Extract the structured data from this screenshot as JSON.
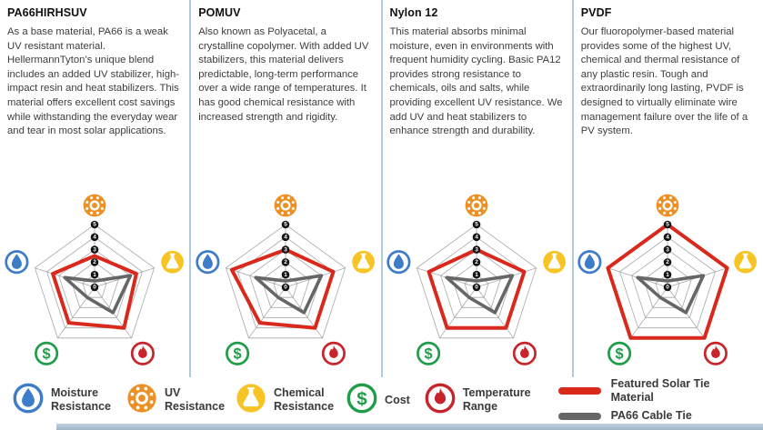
{
  "columns": [
    {
      "title": "PA66HIRHSUV",
      "description": "As a base material, PA66 is a weak UV resistant material. HellermannTyton’s unique blend includes an added UV stabilizer, high-impact resin and heat stabilizers. This material offers excellent cost savings while withstanding the everyday wear and tear in most solar applications."
    },
    {
      "title": "POMUV",
      "description": "Also known as Polyacetal, a crystalline copolymer. With added UV stabilizers, this material delivers predictable, long-term performance over a wide range of temperatures. It has good chemical resistance with increased strength and rigidity."
    },
    {
      "title": "Nylon 12",
      "description": "This material absorbs minimal moisture, even in environments with frequent humidity cycling. Basic PA12 provides strong resistance to chemicals, oils and salts, while providing excellent UV resistance. We add UV and heat stabilizers to enhance strength and durability."
    },
    {
      "title": "PVDF",
      "description": "Our fluoropolymer-based material provides some of the highest UV, chemical and thermal resistance of any plastic resin. Tough and extraordinarily long lasting, PVDF is designed to virtually eliminate wire management failure over the life of a PV system."
    }
  ],
  "chart_data": {
    "type": "radar",
    "axes": [
      "UV Resistance",
      "Chemical Resistance",
      "Temperature Range",
      "Cost",
      "Moisture Resistance"
    ],
    "axis_icons": [
      "sun",
      "flask",
      "flame",
      "dollar",
      "droplet"
    ],
    "scale": {
      "min": 0,
      "max": 5,
      "ticks": [
        5,
        4,
        3,
        2,
        1,
        0
      ]
    },
    "grid": "pentagon rings at 1,2,3,4,5 with radial spokes; tick labels on vertical axis only",
    "legend_position": "bottom",
    "charts": [
      {
        "material": "PA66HIRHSUV",
        "series": [
          {
            "name": "Featured Solar Tie Material",
            "values": [
              2.5,
              3.5,
              4,
              3.5,
              3.5
            ]
          },
          {
            "name": "PA66 Cable Tie",
            "values": [
              0.5,
              3,
              2.5,
              1,
              2.5
            ]
          }
        ]
      },
      {
        "material": "POMUV",
        "series": [
          {
            "name": "Featured Solar Tie Material",
            "values": [
              3,
              4,
              4,
              3.5,
              4.5
            ]
          },
          {
            "name": "PA66 Cable Tie",
            "values": [
              0.5,
              3,
              2.5,
              1,
              2.5
            ]
          }
        ]
      },
      {
        "material": "Nylon 12",
        "series": [
          {
            "name": "Featured Solar Tie Material",
            "values": [
              3,
              4,
              4,
              4,
              4
            ]
          },
          {
            "name": "PA66 Cable Tie",
            "values": [
              0.5,
              3,
              2.5,
              1,
              2.5
            ]
          }
        ]
      },
      {
        "material": "PVDF",
        "series": [
          {
            "name": "Featured Solar Tie Material",
            "values": [
              5,
              5,
              5,
              5,
              5
            ]
          },
          {
            "name": "PA66 Cable Tie",
            "values": [
              0.5,
              3,
              2.5,
              1,
              2.5
            ]
          }
        ]
      }
    ]
  },
  "legend": {
    "attributes": [
      {
        "icon": "droplet",
        "style": "outline",
        "color": "#3d7cc9",
        "line1": "Moisture",
        "line2": "Resistance"
      },
      {
        "icon": "sun",
        "style": "solid",
        "color": "#ec9023",
        "line1": "UV",
        "line2": "Resistance"
      },
      {
        "icon": "flask",
        "style": "solid",
        "color": "#f7c425",
        "line1": "Chemical",
        "line2": "Resistance"
      },
      {
        "icon": "dollar",
        "style": "outline",
        "color": "#1f9d49",
        "line1": "Cost",
        "line2": ""
      },
      {
        "icon": "flame",
        "style": "outline",
        "color": "#c8242b",
        "line1": "Temperature",
        "line2": "Range"
      }
    ],
    "series": [
      {
        "line1": "Featured Solar Tie",
        "line2": "Material",
        "color": "#d9291c"
      },
      {
        "line1": "PA66 Cable Tie",
        "line2": "",
        "color": "#666666"
      }
    ]
  },
  "colors": {
    "featured_line": "#d9291c",
    "pa66_line": "#666666",
    "grid_line": "#a8a8a8",
    "tick_disc": "#141414",
    "divider": "#aecadb",
    "heading_text": "#111111",
    "body_text": "#3d3d3d"
  }
}
